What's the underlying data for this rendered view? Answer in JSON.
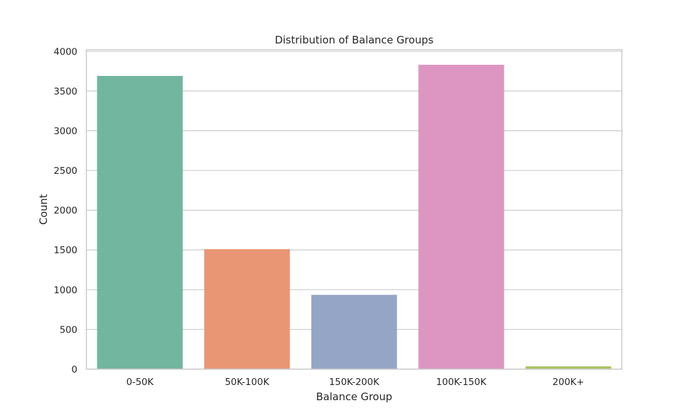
{
  "chart_data": {
    "type": "bar",
    "title": "Distribution of Balance Groups",
    "xlabel": "Balance Group",
    "ylabel": "Count",
    "categories": [
      "0-50K",
      "50K-100K",
      "150K-200K",
      "100K-150K",
      "200K+"
    ],
    "values": [
      3690,
      1510,
      935,
      3830,
      35
    ],
    "colors": [
      "#72b69f",
      "#e99675",
      "#95a5c5",
      "#dc96c1",
      "#a8c560"
    ],
    "ylim": [
      0,
      4020
    ],
    "yticks": [
      0,
      500,
      1000,
      1500,
      2000,
      2500,
      3000,
      3500,
      4000
    ],
    "grid": "horizontal",
    "legend": "none"
  }
}
